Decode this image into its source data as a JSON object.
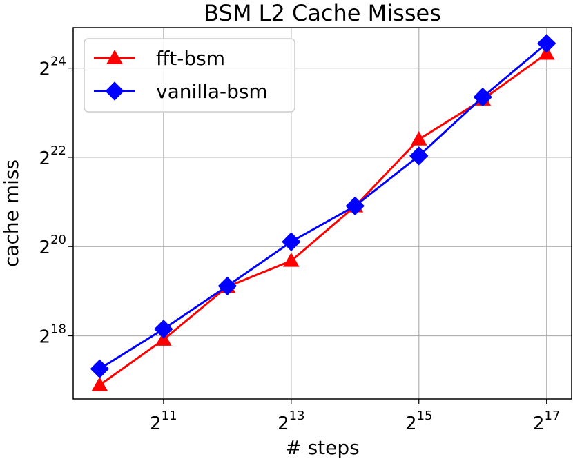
{
  "chart_data": {
    "type": "line",
    "title": "BSM L2 Cache Misses",
    "xlabel": "# steps",
    "ylabel": "cache miss",
    "x_scale": "log2",
    "y_scale": "log2",
    "x": [
      1024,
      2048,
      4096,
      8192,
      16384,
      32768,
      65536,
      131072
    ],
    "xlim": [
      768,
      172032
    ],
    "ylim": [
      98304,
      31457280
    ],
    "x_ticks": [
      {
        "base": "2",
        "exp": "11",
        "value": 2048
      },
      {
        "base": "2",
        "exp": "13",
        "value": 8192
      },
      {
        "base": "2",
        "exp": "15",
        "value": 32768
      },
      {
        "base": "2",
        "exp": "17",
        "value": 131072
      }
    ],
    "y_ticks": [
      {
        "base": "2",
        "exp": "18",
        "value": 262144
      },
      {
        "base": "2",
        "exp": "20",
        "value": 1048576
      },
      {
        "base": "2",
        "exp": "22",
        "value": 4194304
      },
      {
        "base": "2",
        "exp": "24",
        "value": 16777216
      }
    ],
    "grid": true,
    "legend_position": "top-left",
    "series": [
      {
        "name": "fft-bsm",
        "color": "#ff0000",
        "marker": "triangle",
        "values": [
          122000,
          247000,
          562000,
          840000,
          1960000,
          5540000,
          10300000,
          21000000
        ]
      },
      {
        "name": "vanilla-bsm",
        "color": "#0000ff",
        "marker": "diamond",
        "values": [
          157000,
          291000,
          568000,
          1130000,
          1970000,
          4290000,
          10700000,
          24600000
        ]
      }
    ]
  }
}
